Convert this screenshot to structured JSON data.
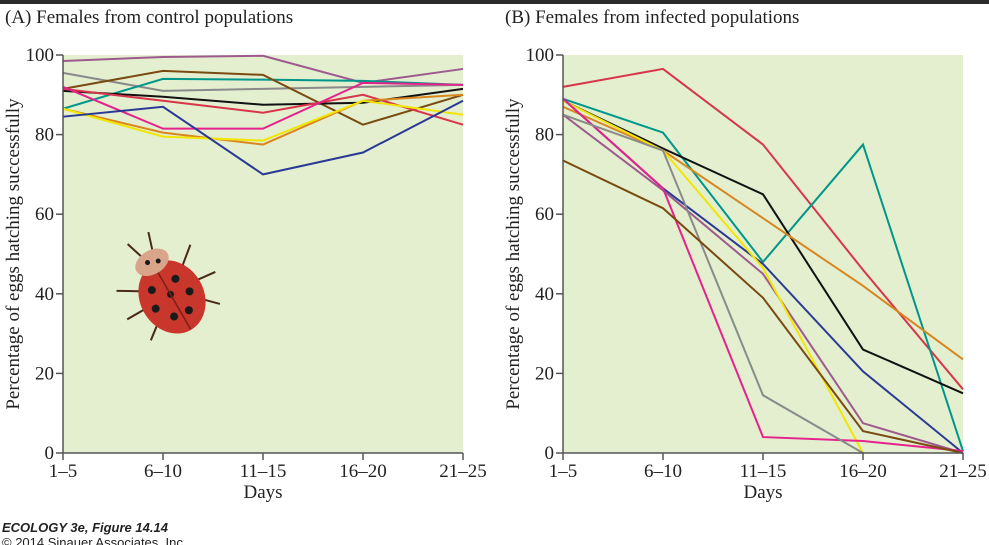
{
  "chart_data": [
    {
      "type": "line",
      "title": "(A) Females from control populations",
      "xlabel": "Days",
      "ylabel": "Percentage of eggs hatching successfully",
      "categories": [
        "1–5",
        "6–10",
        "11–15",
        "16–20",
        "21–25"
      ],
      "ylim": [
        0,
        100
      ],
      "yticks": [
        0,
        20,
        40,
        60,
        80,
        100
      ],
      "series": [
        {
          "color": "#9e5a8e",
          "values": [
            98.5,
            99.5,
            99.8,
            93,
            96.5
          ]
        },
        {
          "color": "#8a8a8a",
          "values": [
            95.5,
            91,
            91.5,
            92,
            92.5
          ]
        },
        {
          "color": "#00968a",
          "values": [
            86.5,
            94,
            93.8,
            93.5,
            92.5
          ]
        },
        {
          "color": "#7a4a10",
          "values": [
            91.5,
            96,
            95,
            82.5,
            90
          ]
        },
        {
          "color": "#111111",
          "values": [
            91,
            89.5,
            87.5,
            88,
            91.5
          ]
        },
        {
          "color": "#d8344a",
          "values": [
            91.5,
            88.5,
            85.5,
            90,
            82.5
          ]
        },
        {
          "color": "#e6228c",
          "values": [
            92,
            81.5,
            81.5,
            93,
            92.5
          ]
        },
        {
          "color": "#d9861e",
          "values": [
            86.5,
            80.5,
            77.5,
            88.5,
            90
          ]
        },
        {
          "color": "#f2e600",
          "values": [
            86.5,
            79.5,
            78.5,
            88.5,
            85
          ]
        },
        {
          "color": "#2a3a94",
          "values": [
            84.5,
            87,
            70,
            75.5,
            88.5
          ]
        }
      ]
    },
    {
      "type": "line",
      "title": "(B) Females from infected populations",
      "xlabel": "Days",
      "ylabel": "Percentage of eggs hatching successfully",
      "categories": [
        "1–5",
        "6–10",
        "11–15",
        "16–20",
        "21–25"
      ],
      "ylim": [
        0,
        100
      ],
      "yticks": [
        0,
        20,
        40,
        60,
        80,
        100
      ],
      "series": [
        {
          "color": "#d8344a",
          "values": [
            92,
            96.5,
            77.5,
            46,
            16
          ]
        },
        {
          "color": "#00968a",
          "values": [
            89,
            80.5,
            48,
            77.5,
            0.5
          ]
        },
        {
          "color": "#111111",
          "values": [
            88.5,
            76.5,
            65,
            26,
            15
          ]
        },
        {
          "color": "#d9861e",
          "values": [
            87,
            76,
            59,
            42,
            23.5
          ]
        },
        {
          "color": "#2a3a94",
          "values": [
            89,
            66.5,
            47.5,
            20.5,
            0
          ]
        },
        {
          "color": "#9e5a8e",
          "values": [
            85,
            66,
            45,
            7.5,
            0
          ]
        },
        {
          "color": "#f2e600",
          "values": [
            88.5,
            76,
            46.5,
            0,
            null
          ]
        },
        {
          "color": "#e6228c",
          "values": [
            89,
            66.5,
            4,
            3,
            0.5
          ]
        },
        {
          "color": "#8a8a8a",
          "values": [
            85,
            76,
            14.5,
            0,
            null
          ]
        },
        {
          "color": "#7a4a10",
          "values": [
            73.5,
            61.5,
            39,
            5.5,
            0
          ]
        }
      ]
    }
  ],
  "footer": {
    "title": "ECOLOGY 3e, Figure 14.14",
    "copyright": "© 2014 Sinauer Associates, Inc."
  }
}
